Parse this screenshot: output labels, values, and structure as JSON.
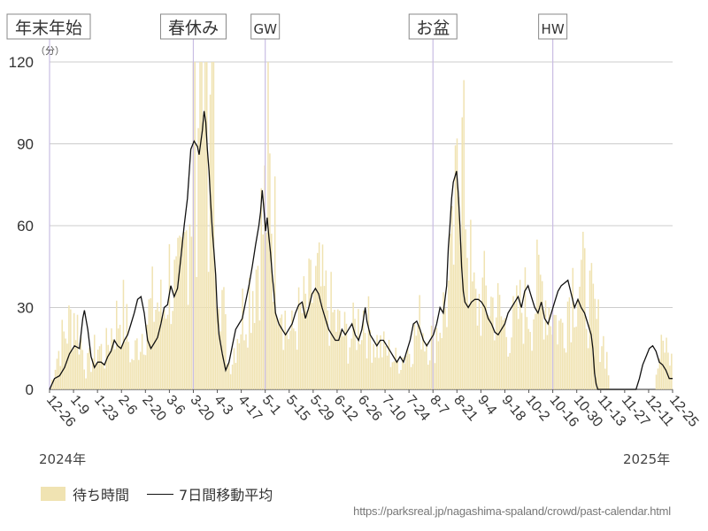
{
  "chart_data": {
    "type": "bar",
    "unit_label": "（分）",
    "ylim": [
      0,
      120
    ],
    "y_ticks": [
      "0",
      "30",
      "60",
      "90",
      "120"
    ],
    "x_tick_labels": [
      "12-26",
      "1-9",
      "1-23",
      "2-6",
      "2-20",
      "3-6",
      "3-20",
      "4-3",
      "4-17",
      "5-1",
      "5-15",
      "5-29",
      "6-12",
      "6-26",
      "7-10",
      "7-24",
      "8-7",
      "8-21",
      "9-4",
      "9-18",
      "10-2",
      "10-16",
      "10-30",
      "11-13",
      "11-27",
      "12-11",
      "12-25"
    ],
    "year_start": "2024年",
    "year_end": "2025年",
    "events": [
      {
        "label": "年末年始",
        "x": "12-26"
      },
      {
        "label": "春休み",
        "x": "3-20"
      },
      {
        "label": "GW",
        "x": "5-1"
      },
      {
        "label": "お盆",
        "x": "8-7"
      },
      {
        "label": "HW",
        "x": "10-16"
      }
    ],
    "series": [
      {
        "name": "待ち時間",
        "type": "bar",
        "color": "#f0e3b2"
      },
      {
        "name": "7日間移動平均",
        "type": "line",
        "color": "#111111"
      }
    ],
    "daily_wait_profile_points": [
      [
        0,
        0
      ],
      [
        3,
        10
      ],
      [
        7,
        18
      ],
      [
        10,
        22
      ],
      [
        14,
        28
      ],
      [
        18,
        18
      ],
      [
        21,
        8
      ],
      [
        25,
        12
      ],
      [
        28,
        16
      ],
      [
        32,
        12
      ],
      [
        35,
        20
      ],
      [
        39,
        25
      ],
      [
        42,
        30
      ],
      [
        45,
        22
      ],
      [
        48,
        10
      ],
      [
        52,
        18
      ],
      [
        56,
        25
      ],
      [
        60,
        30
      ],
      [
        63,
        32
      ],
      [
        66,
        28
      ],
      [
        70,
        42
      ],
      [
        74,
        35
      ],
      [
        77,
        40
      ],
      [
        80,
        55
      ],
      [
        82,
        75
      ],
      [
        84,
        88
      ],
      [
        86,
        90
      ],
      [
        88,
        85
      ],
      [
        91,
        95
      ],
      [
        94,
        88
      ],
      [
        97,
        70
      ],
      [
        99,
        55
      ],
      [
        101,
        35
      ],
      [
        103,
        20
      ],
      [
        105,
        10
      ],
      [
        107,
        12
      ],
      [
        110,
        22
      ],
      [
        114,
        30
      ],
      [
        118,
        38
      ],
      [
        121,
        45
      ],
      [
        123,
        55
      ],
      [
        125,
        60
      ],
      [
        127,
        70
      ],
      [
        129,
        75
      ],
      [
        131,
        60
      ],
      [
        133,
        50
      ],
      [
        135,
        40
      ],
      [
        137,
        30
      ],
      [
        139,
        22
      ],
      [
        142,
        20
      ],
      [
        145,
        25
      ],
      [
        148,
        28
      ],
      [
        151,
        30
      ],
      [
        154,
        35
      ],
      [
        157,
        38
      ],
      [
        159,
        36
      ],
      [
        161,
        33
      ],
      [
        164,
        30
      ],
      [
        167,
        25
      ],
      [
        170,
        22
      ],
      [
        173,
        20
      ],
      [
        176,
        18
      ],
      [
        179,
        22
      ],
      [
        182,
        26
      ],
      [
        184,
        28
      ],
      [
        186,
        24
      ],
      [
        189,
        20
      ],
      [
        192,
        17
      ],
      [
        195,
        15
      ],
      [
        198,
        14
      ],
      [
        201,
        12
      ],
      [
        204,
        10
      ],
      [
        207,
        12
      ],
      [
        210,
        15
      ],
      [
        213,
        18
      ],
      [
        216,
        22
      ],
      [
        218,
        26
      ],
      [
        220,
        20
      ],
      [
        223,
        18
      ],
      [
        226,
        20
      ],
      [
        229,
        25
      ],
      [
        232,
        30
      ],
      [
        234,
        35
      ],
      [
        236,
        45
      ],
      [
        238,
        60
      ],
      [
        240,
        78
      ],
      [
        242,
        80
      ],
      [
        244,
        70
      ],
      [
        246,
        50
      ],
      [
        248,
        35
      ],
      [
        250,
        30
      ],
      [
        253,
        33
      ],
      [
        256,
        34
      ],
      [
        259,
        32
      ],
      [
        262,
        30
      ],
      [
        265,
        26
      ],
      [
        268,
        22
      ],
      [
        271,
        22
      ],
      [
        274,
        26
      ],
      [
        277,
        30
      ],
      [
        280,
        32
      ],
      [
        283,
        28
      ],
      [
        286,
        36
      ],
      [
        289,
        38
      ],
      [
        292,
        32
      ],
      [
        295,
        28
      ],
      [
        298,
        24
      ],
      [
        300,
        22
      ],
      [
        303,
        30
      ],
      [
        306,
        38
      ],
      [
        309,
        42
      ],
      [
        312,
        40
      ],
      [
        315,
        35
      ],
      [
        318,
        30
      ],
      [
        321,
        24
      ],
      [
        324,
        20
      ],
      [
        327,
        12
      ],
      [
        329,
        0
      ],
      [
        355,
        0
      ],
      [
        357,
        8
      ],
      [
        359,
        14
      ],
      [
        361,
        16
      ],
      [
        363,
        14
      ],
      [
        365,
        10
      ],
      [
        366,
        4
      ]
    ],
    "moving_avg_points": [
      [
        0,
        0
      ],
      [
        3,
        4
      ],
      [
        6,
        5
      ],
      [
        9,
        8
      ],
      [
        12,
        13
      ],
      [
        15,
        16
      ],
      [
        18,
        15
      ],
      [
        20,
        26
      ],
      [
        21,
        29
      ],
      [
        23,
        22
      ],
      [
        25,
        12
      ],
      [
        27,
        8
      ],
      [
        29,
        10
      ],
      [
        31,
        10
      ],
      [
        33,
        9
      ],
      [
        35,
        12
      ],
      [
        37,
        14
      ],
      [
        39,
        18
      ],
      [
        41,
        16
      ],
      [
        43,
        15
      ],
      [
        45,
        18
      ],
      [
        47,
        20
      ],
      [
        49,
        24
      ],
      [
        51,
        28
      ],
      [
        53,
        33
      ],
      [
        55,
        34
      ],
      [
        57,
        28
      ],
      [
        59,
        18
      ],
      [
        61,
        15
      ],
      [
        63,
        17
      ],
      [
        65,
        19
      ],
      [
        67,
        24
      ],
      [
        69,
        30
      ],
      [
        71,
        31
      ],
      [
        73,
        38
      ],
      [
        75,
        34
      ],
      [
        77,
        37
      ],
      [
        79,
        48
      ],
      [
        81,
        60
      ],
      [
        83,
        70
      ],
      [
        85,
        88
      ],
      [
        87,
        91
      ],
      [
        89,
        89
      ],
      [
        90,
        86
      ],
      [
        92,
        95
      ],
      [
        93,
        102
      ],
      [
        94,
        98
      ],
      [
        95,
        88
      ],
      [
        96,
        80
      ],
      [
        97,
        68
      ],
      [
        98,
        58
      ],
      [
        99,
        50
      ],
      [
        100,
        42
      ],
      [
        101,
        28
      ],
      [
        102,
        20
      ],
      [
        104,
        13
      ],
      [
        106,
        7
      ],
      [
        108,
        10
      ],
      [
        110,
        16
      ],
      [
        112,
        22
      ],
      [
        114,
        24
      ],
      [
        116,
        26
      ],
      [
        118,
        32
      ],
      [
        120,
        38
      ],
      [
        122,
        45
      ],
      [
        124,
        53
      ],
      [
        126,
        60
      ],
      [
        127,
        65
      ],
      [
        128,
        73
      ],
      [
        129,
        66
      ],
      [
        130,
        58
      ],
      [
        131,
        63
      ],
      [
        132,
        56
      ],
      [
        133,
        50
      ],
      [
        134,
        42
      ],
      [
        135,
        36
      ],
      [
        136,
        28
      ],
      [
        138,
        24
      ],
      [
        140,
        22
      ],
      [
        142,
        20
      ],
      [
        144,
        22
      ],
      [
        146,
        24
      ],
      [
        148,
        28
      ],
      [
        150,
        31
      ],
      [
        152,
        32
      ],
      [
        154,
        26
      ],
      [
        156,
        30
      ],
      [
        158,
        35
      ],
      [
        160,
        37
      ],
      [
        162,
        35
      ],
      [
        164,
        30
      ],
      [
        166,
        26
      ],
      [
        168,
        22
      ],
      [
        170,
        20
      ],
      [
        172,
        18
      ],
      [
        174,
        18
      ],
      [
        176,
        22
      ],
      [
        178,
        20
      ],
      [
        180,
        22
      ],
      [
        182,
        24
      ],
      [
        184,
        20
      ],
      [
        186,
        18
      ],
      [
        188,
        22
      ],
      [
        189,
        26
      ],
      [
        190,
        30
      ],
      [
        191,
        25
      ],
      [
        193,
        20
      ],
      [
        195,
        18
      ],
      [
        197,
        16
      ],
      [
        199,
        18
      ],
      [
        201,
        18
      ],
      [
        203,
        16
      ],
      [
        205,
        14
      ],
      [
        207,
        12
      ],
      [
        209,
        10
      ],
      [
        211,
        12
      ],
      [
        213,
        10
      ],
      [
        215,
        14
      ],
      [
        217,
        18
      ],
      [
        219,
        24
      ],
      [
        221,
        25
      ],
      [
        223,
        22
      ],
      [
        225,
        18
      ],
      [
        227,
        16
      ],
      [
        229,
        18
      ],
      [
        231,
        20
      ],
      [
        233,
        24
      ],
      [
        235,
        30
      ],
      [
        237,
        28
      ],
      [
        239,
        38
      ],
      [
        240,
        52
      ],
      [
        241,
        60
      ],
      [
        242,
        70
      ],
      [
        243,
        76
      ],
      [
        244,
        78
      ],
      [
        245,
        80
      ],
      [
        246,
        72
      ],
      [
        247,
        60
      ],
      [
        248,
        45
      ],
      [
        249,
        36
      ],
      [
        250,
        32
      ],
      [
        252,
        30
      ],
      [
        254,
        32
      ],
      [
        256,
        33
      ],
      [
        258,
        33
      ],
      [
        260,
        32
      ],
      [
        262,
        30
      ],
      [
        264,
        26
      ],
      [
        266,
        24
      ],
      [
        268,
        21
      ],
      [
        270,
        20
      ],
      [
        272,
        22
      ],
      [
        274,
        24
      ],
      [
        276,
        28
      ],
      [
        278,
        30
      ],
      [
        280,
        32
      ],
      [
        282,
        34
      ],
      [
        284,
        30
      ],
      [
        286,
        36
      ],
      [
        288,
        38
      ],
      [
        290,
        34
      ],
      [
        292,
        30
      ],
      [
        294,
        28
      ],
      [
        296,
        32
      ],
      [
        298,
        26
      ],
      [
        300,
        24
      ],
      [
        302,
        28
      ],
      [
        304,
        32
      ],
      [
        306,
        36
      ],
      [
        308,
        38
      ],
      [
        310,
        39
      ],
      [
        312,
        40
      ],
      [
        314,
        35
      ],
      [
        316,
        30
      ],
      [
        318,
        33
      ],
      [
        320,
        30
      ],
      [
        322,
        28
      ],
      [
        324,
        24
      ],
      [
        326,
        20
      ],
      [
        327,
        15
      ],
      [
        328,
        6
      ],
      [
        329,
        2
      ],
      [
        330,
        0
      ],
      [
        353,
        0
      ],
      [
        355,
        4
      ],
      [
        357,
        9
      ],
      [
        359,
        12
      ],
      [
        361,
        15
      ],
      [
        363,
        16
      ],
      [
        365,
        14
      ],
      [
        367,
        10
      ],
      [
        369,
        9
      ],
      [
        371,
        7
      ],
      [
        373,
        4
      ],
      [
        375,
        4
      ]
    ]
  },
  "source_url": "https://parksreal.jp/nagashima-spaland/crowd/past-calendar.html"
}
